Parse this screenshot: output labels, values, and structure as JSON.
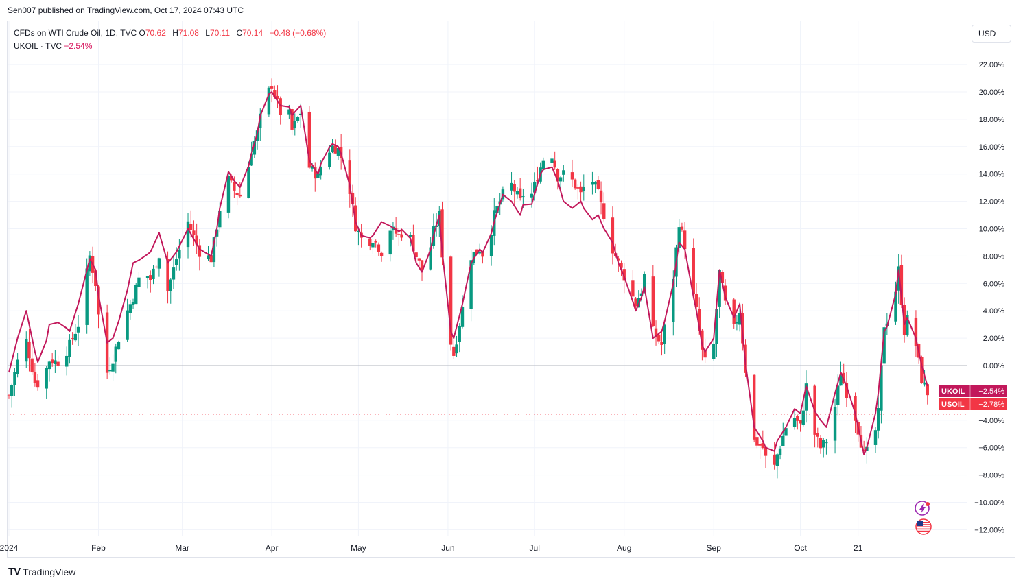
{
  "header": {
    "published": "Sen007 published on TradingView.com, Oct 17, 2024 07:43 UTC"
  },
  "legend": {
    "main_symbol": "CFDs on WTI Crude Oil, 1D, TVC",
    "o_label": "O",
    "o_value": "70.62",
    "h_label": "H",
    "h_value": "71.08",
    "l_label": "L",
    "l_value": "70.11",
    "c_label": "C",
    "c_value": "70.14",
    "change": "−0.48 (−0.68%)",
    "compare_symbol": "UKOIL · TVC",
    "compare_change": "−2.54%"
  },
  "toolbar": {
    "currency": "USD"
  },
  "footer": {
    "brand": "TradingView"
  },
  "colors": {
    "up": "#089981",
    "down": "#f23645",
    "compare_line": "#c2185b",
    "zero_line": "#b2b5be",
    "grid": "#f0f3fa",
    "axis_text": "#131722"
  },
  "icons": {
    "lightning": "lightning-icon",
    "flag": "us-flag-icon"
  },
  "chart_data": {
    "type": "candlestick",
    "y_unit": "%",
    "ylim": [
      -13,
      23
    ],
    "y_ticks": [
      "22.00%",
      "20.00%",
      "18.00%",
      "16.00%",
      "14.00%",
      "12.00%",
      "10.00%",
      "8.00%",
      "6.00%",
      "4.00%",
      "2.00%",
      "0.00%",
      "−4.00%",
      "−6.00%",
      "−8.00%",
      "−10.00%",
      "−12.00%"
    ],
    "y_tick_values": [
      22,
      20,
      18,
      16,
      14,
      12,
      10,
      8,
      6,
      4,
      2,
      0,
      -4,
      -6,
      -8,
      -10,
      -12
    ],
    "x_ticks": [
      {
        "label": "2024",
        "day": 0
      },
      {
        "label": "Feb",
        "day": 31
      },
      {
        "label": "Mar",
        "day": 60
      },
      {
        "label": "Apr",
        "day": 91
      },
      {
        "label": "May",
        "day": 121
      },
      {
        "label": "Jun",
        "day": 152
      },
      {
        "label": "Jul",
        "day": 182
      },
      {
        "label": "Aug",
        "day": 213
      },
      {
        "label": "Sep",
        "day": 244
      },
      {
        "label": "Oct",
        "day": 274
      },
      {
        "label": "21",
        "day": 294
      }
    ],
    "grid": true,
    "series": [
      {
        "name": "USOIL",
        "kind": "candles",
        "last": "−2.78%",
        "color": "#f23645"
      },
      {
        "name": "UKOIL",
        "kind": "line",
        "last": "−2.54%",
        "color": "#c2185b"
      }
    ],
    "usoil_anchors": [
      [
        0,
        -2.2
      ],
      [
        3,
        0.3
      ],
      [
        6,
        1.8
      ],
      [
        9,
        -1.2
      ],
      [
        11,
        -1.5
      ],
      [
        14,
        0.4
      ],
      [
        18,
        0.2
      ],
      [
        21,
        1.5
      ],
      [
        24,
        3.0
      ],
      [
        28,
        8.0
      ],
      [
        30,
        6.0
      ],
      [
        33,
        -1.0
      ],
      [
        36,
        0.5
      ],
      [
        40,
        3.5
      ],
      [
        43,
        5.0
      ],
      [
        46,
        7.0
      ],
      [
        49,
        6.3
      ],
      [
        52,
        8.1
      ],
      [
        55,
        5.5
      ],
      [
        58,
        7.8
      ],
      [
        62,
        10.5
      ],
      [
        66,
        8.3
      ],
      [
        70,
        7.8
      ],
      [
        72,
        10.2
      ],
      [
        75,
        14.0
      ],
      [
        78,
        12.8
      ],
      [
        81,
        12.2
      ],
      [
        84,
        15.8
      ],
      [
        86,
        17.0
      ],
      [
        88,
        19.2
      ],
      [
        91,
        20.5
      ],
      [
        94,
        18.5
      ],
      [
        96,
        19.5
      ],
      [
        98,
        17.2
      ],
      [
        101,
        18.5
      ],
      [
        104,
        14.5
      ],
      [
        107,
        13.8
      ],
      [
        109,
        15.3
      ],
      [
        112,
        16.0
      ],
      [
        114,
        15.8
      ],
      [
        117,
        14.1
      ],
      [
        120,
        10.2
      ],
      [
        123,
        8.8
      ],
      [
        126,
        9.3
      ],
      [
        129,
        8.3
      ],
      [
        132,
        10.0
      ],
      [
        135,
        9.5
      ],
      [
        138,
        10.0
      ],
      [
        141,
        8.0
      ],
      [
        144,
        6.5
      ],
      [
        147,
        9.8
      ],
      [
        149,
        11.0
      ],
      [
        152,
        2.5
      ],
      [
        154,
        0.8
      ],
      [
        157,
        4.2
      ],
      [
        160,
        8.0
      ],
      [
        163,
        8.5
      ],
      [
        165,
        7.8
      ],
      [
        168,
        11.0
      ],
      [
        171,
        12.5
      ],
      [
        174,
        13.2
      ],
      [
        177,
        12.0
      ],
      [
        179,
        13.0
      ],
      [
        181,
        12.5
      ],
      [
        184,
        14.5
      ],
      [
        187,
        16.2
      ],
      [
        190,
        13.8
      ],
      [
        192,
        14.0
      ],
      [
        195,
        13.5
      ],
      [
        198,
        12.5
      ],
      [
        201,
        14.0
      ],
      [
        204,
        12.5
      ],
      [
        206,
        11.0
      ],
      [
        209,
        8.5
      ],
      [
        211,
        7.5
      ],
      [
        214,
        6.0
      ],
      [
        217,
        4.5
      ],
      [
        219,
        5.5
      ],
      [
        221,
        7.6
      ],
      [
        223,
        2.5
      ],
      [
        226,
        1.5
      ],
      [
        228,
        4.0
      ],
      [
        230,
        6.5
      ],
      [
        232,
        10.5
      ],
      [
        234,
        8.8
      ],
      [
        236,
        6.0
      ],
      [
        238,
        4.0
      ],
      [
        240,
        1.0
      ],
      [
        242,
        -0.5
      ],
      [
        244,
        1.5
      ],
      [
        246,
        6.8
      ],
      [
        248,
        4.5
      ],
      [
        250,
        2.0
      ],
      [
        253,
        4.0
      ],
      [
        256,
        -2.5
      ],
      [
        258,
        -5.5
      ],
      [
        261,
        -6.0
      ],
      [
        264,
        -8.3
      ],
      [
        266,
        -6.5
      ],
      [
        269,
        -4.5
      ],
      [
        271,
        -3.5
      ],
      [
        274,
        -4.5
      ],
      [
        276,
        -1.5
      ],
      [
        278,
        -4.5
      ],
      [
        281,
        -6.0
      ],
      [
        283,
        -5.5
      ],
      [
        286,
        -3.0
      ],
      [
        288,
        -0.5
      ],
      [
        290,
        -2.0
      ],
      [
        293,
        -3.8
      ],
      [
        296,
        -6.5
      ],
      [
        299,
        -6.0
      ],
      [
        301,
        -3.5
      ],
      [
        303,
        3.0
      ],
      [
        306,
        4.0
      ],
      [
        308,
        7.0
      ],
      [
        310,
        2.5
      ],
      [
        312,
        4.2
      ],
      [
        314,
        1.5
      ],
      [
        316,
        -1.0
      ],
      [
        318,
        -2.0
      ],
      [
        320,
        -3.0
      ]
    ],
    "ukoil_anchors": [
      [
        0,
        -0.5
      ],
      [
        3,
        2.0
      ],
      [
        6,
        4.0
      ],
      [
        9,
        1.0
      ],
      [
        11,
        -0.5
      ],
      [
        14,
        3.0
      ],
      [
        18,
        3.2
      ],
      [
        21,
        2.5
      ],
      [
        24,
        4.5
      ],
      [
        28,
        7.8
      ],
      [
        30,
        7.0
      ],
      [
        33,
        1.5
      ],
      [
        36,
        2.0
      ],
      [
        40,
        4.5
      ],
      [
        43,
        7.5
      ],
      [
        46,
        7.8
      ],
      [
        49,
        8.3
      ],
      [
        52,
        9.7
      ],
      [
        55,
        7.5
      ],
      [
        58,
        8.3
      ],
      [
        62,
        10.0
      ],
      [
        66,
        8.5
      ],
      [
        70,
        8.0
      ],
      [
        72,
        10.0
      ],
      [
        75,
        14.5
      ],
      [
        78,
        13.5
      ],
      [
        81,
        12.8
      ],
      [
        84,
        15.5
      ],
      [
        86,
        17.0
      ],
      [
        88,
        19.5
      ],
      [
        91,
        20.0
      ],
      [
        94,
        19.0
      ],
      [
        96,
        19.5
      ],
      [
        98,
        18.3
      ],
      [
        101,
        19.0
      ],
      [
        104,
        15.0
      ],
      [
        107,
        14.0
      ],
      [
        109,
        15.5
      ],
      [
        112,
        16.2
      ],
      [
        114,
        16.0
      ],
      [
        117,
        14.5
      ],
      [
        120,
        10.5
      ],
      [
        123,
        9.0
      ],
      [
        126,
        9.5
      ],
      [
        129,
        10.5
      ],
      [
        132,
        10.2
      ],
      [
        135,
        9.8
      ],
      [
        138,
        10.2
      ],
      [
        141,
        7.5
      ],
      [
        144,
        6.5
      ],
      [
        147,
        9.5
      ],
      [
        149,
        11.0
      ],
      [
        152,
        3.0
      ],
      [
        154,
        2.0
      ],
      [
        157,
        4.5
      ],
      [
        160,
        7.5
      ],
      [
        163,
        8.5
      ],
      [
        165,
        8.0
      ],
      [
        168,
        10.5
      ],
      [
        171,
        12.5
      ],
      [
        174,
        12.0
      ],
      [
        177,
        11.0
      ],
      [
        179,
        12.5
      ],
      [
        181,
        11.8
      ],
      [
        184,
        14.0
      ],
      [
        187,
        15.0
      ],
      [
        190,
        13.5
      ],
      [
        192,
        12.0
      ],
      [
        195,
        11.5
      ],
      [
        198,
        12.0
      ],
      [
        201,
        10.5
      ],
      [
        204,
        11.0
      ],
      [
        206,
        10.0
      ],
      [
        209,
        9.0
      ],
      [
        211,
        7.5
      ],
      [
        214,
        6.0
      ],
      [
        217,
        4.0
      ],
      [
        219,
        5.0
      ],
      [
        221,
        6.5
      ],
      [
        223,
        2.0
      ],
      [
        226,
        2.5
      ],
      [
        228,
        4.0
      ],
      [
        230,
        6.0
      ],
      [
        232,
        9.0
      ],
      [
        234,
        8.5
      ],
      [
        236,
        6.0
      ],
      [
        238,
        4.0
      ],
      [
        240,
        1.5
      ],
      [
        242,
        0.5
      ],
      [
        244,
        2.0
      ],
      [
        246,
        7.0
      ],
      [
        248,
        5.0
      ],
      [
        250,
        3.0
      ],
      [
        253,
        4.5
      ],
      [
        256,
        -2.0
      ],
      [
        258,
        -4.5
      ],
      [
        261,
        -5.5
      ],
      [
        264,
        -7.0
      ],
      [
        266,
        -5.5
      ],
      [
        269,
        -4.5
      ],
      [
        271,
        -3.0
      ],
      [
        274,
        -3.5
      ],
      [
        276,
        -1.5
      ],
      [
        278,
        -3.0
      ],
      [
        281,
        -4.0
      ],
      [
        283,
        -4.5
      ],
      [
        286,
        -2.0
      ],
      [
        288,
        -0.5
      ],
      [
        290,
        -1.5
      ],
      [
        293,
        -3.5
      ],
      [
        296,
        -6.5
      ],
      [
        299,
        -5.0
      ],
      [
        301,
        -2.0
      ],
      [
        303,
        2.5
      ],
      [
        306,
        3.5
      ],
      [
        308,
        7.0
      ],
      [
        310,
        3.0
      ],
      [
        312,
        4.0
      ],
      [
        314,
        2.0
      ],
      [
        316,
        0.0
      ],
      [
        318,
        -1.5
      ],
      [
        320,
        -2.2
      ]
    ]
  }
}
